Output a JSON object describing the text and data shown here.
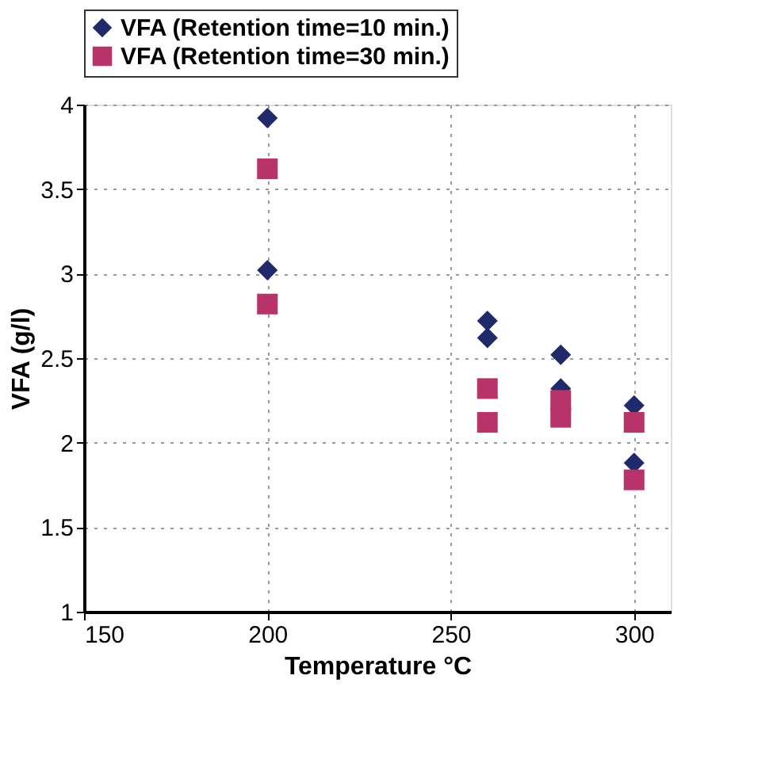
{
  "chart_data": {
    "type": "scatter",
    "xlabel": "Temperature °C",
    "ylabel": "VFA (g/l)",
    "xlim": [
      150,
      310
    ],
    "xticks": [
      150,
      200,
      250,
      300
    ],
    "ylim": [
      1,
      4
    ],
    "yticks": [
      1,
      1.5,
      2,
      2.5,
      3,
      3.5,
      4
    ],
    "grid": true,
    "legend": "top",
    "series": [
      {
        "name": "VFA (Retention time=10 min.)",
        "color": "#1f2a6b",
        "marker": "diamond",
        "x": [
          200,
          200,
          260,
          260,
          280,
          280,
          300,
          300
        ],
        "values": [
          3.92,
          3.02,
          2.72,
          2.62,
          2.52,
          2.32,
          2.22,
          1.88
        ]
      },
      {
        "name": "VFA (Retention time=30 min.)",
        "color": "#b8336a",
        "marker": "square",
        "x": [
          200,
          200,
          260,
          260,
          280,
          280,
          300,
          300
        ],
        "values": [
          3.62,
          2.82,
          2.32,
          2.12,
          2.25,
          2.15,
          2.12,
          1.78
        ]
      }
    ]
  }
}
